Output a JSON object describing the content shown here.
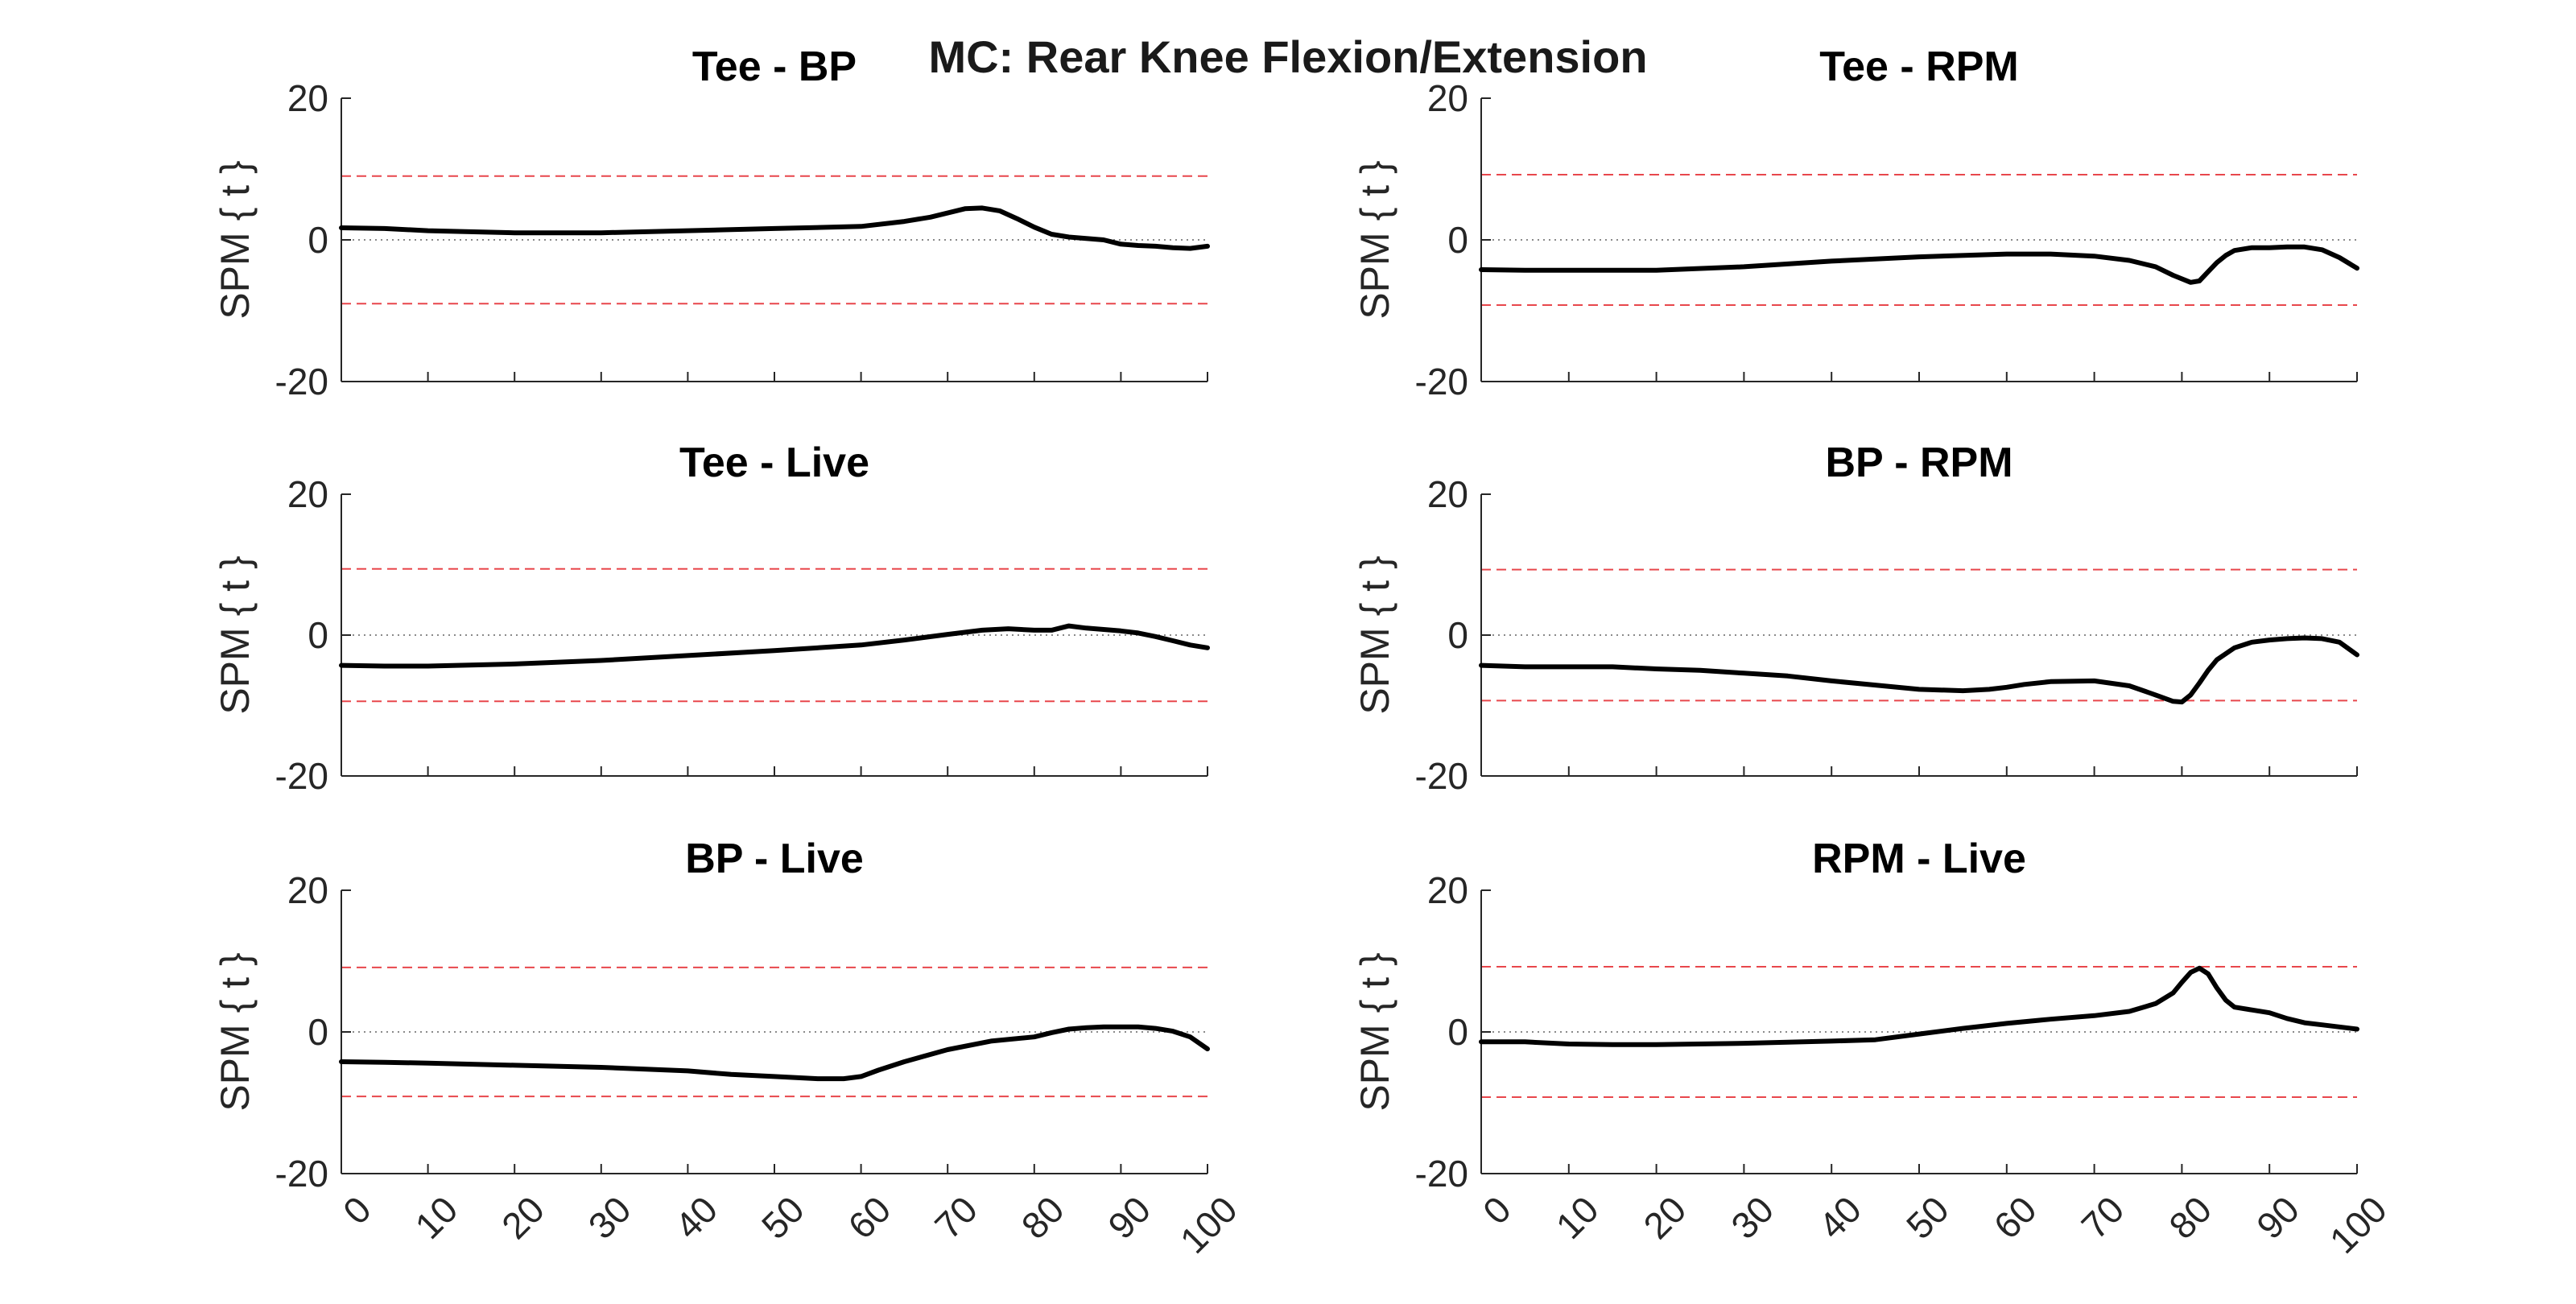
{
  "figure": {
    "title": "MC: Rear Knee Flexion/Extension"
  },
  "chart_data": [
    {
      "type": "line",
      "title": "Tee - BP",
      "ylabel": "SPM { t }",
      "xlabel": "",
      "xlim": [
        0,
        100
      ],
      "ylim": [
        -20,
        20
      ],
      "yticks": [
        -20,
        0,
        20
      ],
      "xticks": [
        0,
        10,
        20,
        30,
        40,
        50,
        60,
        70,
        80,
        90,
        100
      ],
      "show_xticklabels": false,
      "threshold": 9.0,
      "zero_line": true,
      "x": [
        0,
        5,
        10,
        20,
        30,
        40,
        50,
        60,
        65,
        68,
        70,
        72,
        74,
        76,
        78,
        80,
        82,
        84,
        86,
        88,
        90,
        92,
        94,
        96,
        98,
        100
      ],
      "y": [
        1.7,
        1.6,
        1.3,
        1.0,
        1.0,
        1.3,
        1.6,
        1.9,
        2.6,
        3.2,
        3.8,
        4.4,
        4.5,
        4.1,
        3.0,
        1.8,
        0.8,
        0.4,
        0.2,
        0.0,
        -0.6,
        -0.8,
        -0.9,
        -1.1,
        -1.2,
        -0.9
      ]
    },
    {
      "type": "line",
      "title": "Tee - RPM",
      "ylabel": "SPM { t }",
      "xlabel": "",
      "xlim": [
        0,
        100
      ],
      "ylim": [
        -20,
        20
      ],
      "yticks": [
        -20,
        0,
        20
      ],
      "xticks": [
        0,
        10,
        20,
        30,
        40,
        50,
        60,
        70,
        80,
        90,
        100
      ],
      "show_xticklabels": false,
      "threshold": 9.2,
      "zero_line": true,
      "x": [
        0,
        5,
        10,
        20,
        30,
        40,
        50,
        60,
        65,
        70,
        74,
        77,
        79,
        81,
        82,
        83,
        84,
        85,
        86,
        88,
        90,
        92,
        94,
        96,
        98,
        100
      ],
      "y": [
        -4.2,
        -4.3,
        -4.3,
        -4.3,
        -3.8,
        -3.0,
        -2.4,
        -2.0,
        -2.0,
        -2.3,
        -2.9,
        -3.8,
        -5.0,
        -6.0,
        -5.8,
        -4.5,
        -3.2,
        -2.2,
        -1.5,
        -1.1,
        -1.1,
        -1.0,
        -1.0,
        -1.4,
        -2.5,
        -4.0
      ]
    },
    {
      "type": "line",
      "title": "Tee - Live",
      "ylabel": "SPM { t }",
      "xlabel": "",
      "xlim": [
        0,
        100
      ],
      "ylim": [
        -20,
        20
      ],
      "yticks": [
        -20,
        0,
        20
      ],
      "xticks": [
        0,
        10,
        20,
        30,
        40,
        50,
        60,
        70,
        80,
        90,
        100
      ],
      "show_xticklabels": false,
      "threshold": 9.4,
      "zero_line": true,
      "x": [
        0,
        5,
        10,
        20,
        30,
        40,
        50,
        60,
        65,
        70,
        74,
        77,
        80,
        82,
        84,
        86,
        88,
        90,
        92,
        94,
        96,
        98,
        100
      ],
      "y": [
        -4.3,
        -4.4,
        -4.4,
        -4.1,
        -3.6,
        -2.9,
        -2.2,
        -1.4,
        -0.7,
        0.1,
        0.7,
        0.9,
        0.7,
        0.7,
        1.3,
        1.0,
        0.8,
        0.6,
        0.3,
        -0.2,
        -0.8,
        -1.4,
        -1.8
      ]
    },
    {
      "type": "line",
      "title": "BP - RPM",
      "ylabel": "SPM { t }",
      "xlabel": "",
      "xlim": [
        0,
        100
      ],
      "ylim": [
        -20,
        20
      ],
      "yticks": [
        -20,
        0,
        20
      ],
      "xticks": [
        0,
        10,
        20,
        30,
        40,
        50,
        60,
        70,
        80,
        90,
        100
      ],
      "show_xticklabels": false,
      "threshold": 9.3,
      "zero_line": true,
      "x": [
        0,
        5,
        10,
        15,
        20,
        25,
        30,
        35,
        40,
        45,
        50,
        55,
        58,
        60,
        62,
        65,
        70,
        74,
        77,
        79,
        80,
        81,
        82,
        83,
        84,
        86,
        88,
        90,
        92,
        94,
        96,
        98,
        100
      ],
      "y": [
        -4.3,
        -4.5,
        -4.5,
        -4.5,
        -4.8,
        -5.0,
        -5.4,
        -5.8,
        -6.5,
        -7.1,
        -7.7,
        -7.9,
        -7.7,
        -7.4,
        -7.0,
        -6.6,
        -6.5,
        -7.2,
        -8.5,
        -9.4,
        -9.5,
        -8.5,
        -6.8,
        -5.0,
        -3.5,
        -1.8,
        -1.0,
        -0.7,
        -0.5,
        -0.4,
        -0.5,
        -1.0,
        -2.8
      ]
    },
    {
      "type": "line",
      "title": "BP - Live",
      "ylabel": "SPM { t }",
      "xlabel": "",
      "xlim": [
        0,
        100
      ],
      "ylim": [
        -20,
        20
      ],
      "yticks": [
        -20,
        0,
        20
      ],
      "xticks": [
        0,
        10,
        20,
        30,
        40,
        50,
        60,
        70,
        80,
        90,
        100
      ],
      "show_xticklabels": true,
      "threshold": 9.1,
      "zero_line": true,
      "x": [
        0,
        5,
        10,
        20,
        30,
        40,
        45,
        50,
        55,
        58,
        60,
        62,
        65,
        70,
        75,
        80,
        82,
        84,
        86,
        88,
        90,
        92,
        94,
        96,
        98,
        100
      ],
      "y": [
        -4.2,
        -4.3,
        -4.4,
        -4.7,
        -5.0,
        -5.5,
        -6.0,
        -6.3,
        -6.6,
        -6.6,
        -6.3,
        -5.4,
        -4.2,
        -2.5,
        -1.3,
        -0.7,
        -0.1,
        0.4,
        0.6,
        0.7,
        0.7,
        0.7,
        0.5,
        0.1,
        -0.7,
        -2.4
      ]
    },
    {
      "type": "line",
      "title": "RPM - Live",
      "ylabel": "SPM { t }",
      "xlabel": "",
      "xlim": [
        0,
        100
      ],
      "ylim": [
        -20,
        20
      ],
      "yticks": [
        -20,
        0,
        20
      ],
      "xticks": [
        0,
        10,
        20,
        30,
        40,
        50,
        60,
        70,
        80,
        90,
        100
      ],
      "show_xticklabels": true,
      "threshold": 9.2,
      "zero_line": true,
      "x": [
        0,
        5,
        10,
        15,
        20,
        30,
        40,
        45,
        50,
        55,
        60,
        65,
        70,
        74,
        77,
        79,
        80,
        81,
        82,
        83,
        84,
        85,
        86,
        88,
        90,
        92,
        94,
        96,
        98,
        100
      ],
      "y": [
        -1.4,
        -1.4,
        -1.7,
        -1.8,
        -1.8,
        -1.6,
        -1.3,
        -1.1,
        -0.3,
        0.5,
        1.2,
        1.8,
        2.3,
        2.9,
        4.0,
        5.5,
        7.0,
        8.4,
        9.0,
        8.2,
        6.2,
        4.5,
        3.5,
        3.1,
        2.7,
        1.9,
        1.3,
        1.0,
        0.7,
        0.4
      ]
    }
  ]
}
